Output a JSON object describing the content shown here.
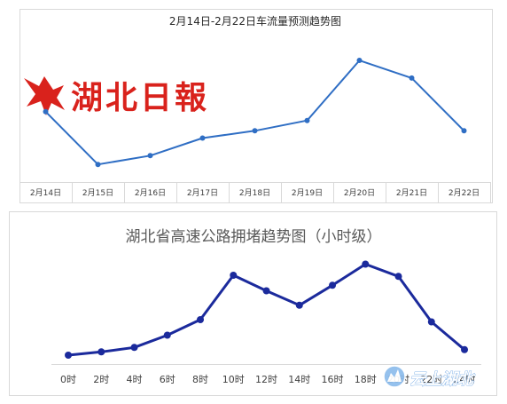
{
  "logo": {
    "text": "湖北日報",
    "color": "#d9221c"
  },
  "watermark": {
    "text": "云上湖北",
    "color": "#5b9ae0"
  },
  "colors": {
    "top_line": "#2f6ec4",
    "bottom_line": "#1b2a9c",
    "axis": "#d9d9d9",
    "frame": "#d9d9d9"
  },
  "chart_data": [
    {
      "type": "line",
      "title": "2月14日-2月22日车流量预测趋势图",
      "categories": [
        "2月14日",
        "2月15日",
        "2月16日",
        "2月17日",
        "2月18日",
        "2月19日",
        "2月20日",
        "2月21日",
        "2月22日"
      ],
      "series": [
        {
          "values": [
            48,
            12,
            18,
            30,
            35,
            42,
            83,
            71,
            35
          ]
        }
      ],
      "xlabel": "",
      "ylabel": "",
      "ylim": [
        0,
        100
      ],
      "grid": false,
      "legend": "none"
    },
    {
      "type": "line",
      "title": "湖北省高速公路拥堵趋势图（小时级）",
      "categories": [
        "0时",
        "2时",
        "4时",
        "6时",
        "8时",
        "10时",
        "12时",
        "14时",
        "16时",
        "18时",
        "20时",
        "22时",
        "24时"
      ],
      "series": [
        {
          "values": [
            8,
            11,
            15,
            26,
            40,
            80,
            66,
            53,
            71,
            90,
            79,
            38,
            13
          ]
        }
      ],
      "xlabel": "",
      "ylabel": "",
      "ylim": [
        0,
        100
      ],
      "grid": false,
      "legend": "none"
    }
  ]
}
